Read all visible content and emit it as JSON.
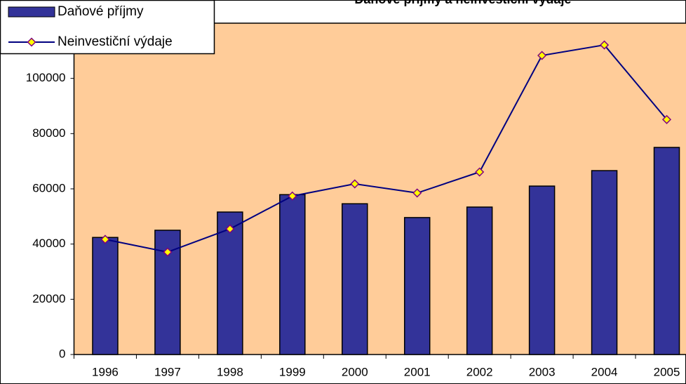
{
  "chart_data": {
    "type": "bar-line",
    "title": "Daňové příjmy a neinvestiční výdaje",
    "categories": [
      "1996",
      "1997",
      "1998",
      "1999",
      "2000",
      "2001",
      "2002",
      "2003",
      "2004",
      "2005"
    ],
    "series": [
      {
        "name": "Daňové příjmy",
        "type": "bar",
        "color": "#333399",
        "values": [
          42400,
          45000,
          51600,
          57900,
          54600,
          49600,
          53400,
          61000,
          66600,
          75000
        ]
      },
      {
        "name": "Neinvestiční výdaje",
        "type": "line",
        "color": "#000080",
        "marker_color": "#ffff00",
        "values": [
          41700,
          37100,
          45500,
          57400,
          61800,
          58500,
          66100,
          108300,
          112100,
          85100
        ]
      }
    ],
    "ylim": [
      0,
      120000
    ],
    "yticks": [
      0,
      20000,
      40000,
      60000,
      80000,
      100000
    ],
    "grid": false,
    "background": "#ffcc99",
    "legend": "top-left"
  }
}
